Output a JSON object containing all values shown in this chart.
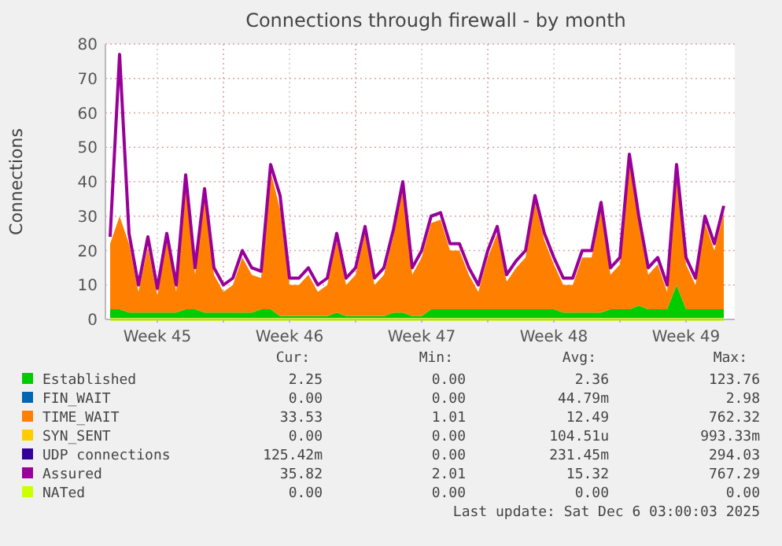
{
  "chart_data": {
    "type": "area",
    "title": "Connections through firewall - by month",
    "ylabel": "Connections",
    "stacked": true,
    "grid": true,
    "legend": "bottom",
    "xlim": [
      "2025-11-03T18:00",
      "2025-12-07T02:00"
    ],
    "xticks": [
      {
        "value": "2025-11-06T12:00",
        "label": "Week 45"
      },
      {
        "value": "2025-11-10",
        "label": null
      },
      {
        "value": "2025-11-13T12:00",
        "label": "Week 46"
      },
      {
        "value": "2025-11-17",
        "label": null
      },
      {
        "value": "2025-11-20T12:00",
        "label": "Week 47"
      },
      {
        "value": "2025-11-24",
        "label": null
      },
      {
        "value": "2025-11-27T12:00",
        "label": "Week 48"
      },
      {
        "value": "2025-12-01",
        "label": null
      },
      {
        "value": "2025-12-04T12:00",
        "label": "Week 49"
      }
    ],
    "ylim": [
      0,
      80
    ],
    "yticks": [
      0,
      10,
      20,
      30,
      40,
      50,
      60,
      70,
      80
    ],
    "x": [
      "2025-11-04T00:00",
      "2025-11-04T12:00",
      "2025-11-05T00:00",
      "2025-11-05T12:00",
      "2025-11-06T00:00",
      "2025-11-06T12:00",
      "2025-11-07T00:00",
      "2025-11-07T12:00",
      "2025-11-08T00:00",
      "2025-11-08T12:00",
      "2025-11-09T00:00",
      "2025-11-09T12:00",
      "2025-11-10T00:00",
      "2025-11-10T12:00",
      "2025-11-11T00:00",
      "2025-11-11T12:00",
      "2025-11-12T00:00",
      "2025-11-12T12:00",
      "2025-11-13T00:00",
      "2025-11-13T12:00",
      "2025-11-14T00:00",
      "2025-11-14T12:00",
      "2025-11-15T00:00",
      "2025-11-15T12:00",
      "2025-11-16T00:00",
      "2025-11-16T12:00",
      "2025-11-17T00:00",
      "2025-11-17T12:00",
      "2025-11-18T00:00",
      "2025-11-18T12:00",
      "2025-11-19T00:00",
      "2025-11-19T12:00",
      "2025-11-20T00:00",
      "2025-11-20T12:00",
      "2025-11-21T00:00",
      "2025-11-21T12:00",
      "2025-11-22T00:00",
      "2025-11-22T12:00",
      "2025-11-23T00:00",
      "2025-11-23T12:00",
      "2025-11-24T00:00",
      "2025-11-24T12:00",
      "2025-11-25T00:00",
      "2025-11-25T12:00",
      "2025-11-26T00:00",
      "2025-11-26T12:00",
      "2025-11-27T00:00",
      "2025-11-27T12:00",
      "2025-11-28T00:00",
      "2025-11-28T12:00",
      "2025-11-29T00:00",
      "2025-11-29T12:00",
      "2025-11-30T00:00",
      "2025-11-30T12:00",
      "2025-12-01T00:00",
      "2025-12-01T12:00",
      "2025-12-02T00:00",
      "2025-12-02T12:00",
      "2025-12-03T00:00",
      "2025-12-03T12:00",
      "2025-12-04T00:00",
      "2025-12-04T12:00",
      "2025-12-05T00:00",
      "2025-12-05T12:00",
      "2025-12-06T00:00",
      "2025-12-06T12:00"
    ],
    "series": [
      {
        "name": "Established",
        "color": "#00cc00",
        "values": [
          3,
          3,
          2,
          2,
          2,
          2,
          2,
          2,
          3,
          3,
          2,
          2,
          2,
          2,
          2,
          2,
          3,
          3,
          1,
          1,
          1,
          1,
          1,
          1,
          2,
          1,
          1,
          1,
          1,
          1,
          2,
          2,
          1,
          1,
          3,
          3,
          3,
          3,
          3,
          3,
          3,
          3,
          3,
          3,
          3,
          3,
          3,
          3,
          2,
          2,
          2,
          2,
          2,
          3,
          3,
          3,
          4,
          3,
          3,
          3,
          10,
          3,
          3,
          3,
          3,
          3
        ]
      },
      {
        "name": "FIN_WAIT",
        "color": "#0066b3",
        "values": [
          null,
          null,
          null,
          null,
          null,
          null,
          null,
          null,
          null,
          null,
          null,
          null,
          null,
          null,
          null,
          null,
          null,
          null,
          null,
          null,
          null,
          null,
          null,
          null,
          null,
          null,
          null,
          null,
          null,
          null,
          null,
          null,
          null,
          null,
          null,
          null,
          null,
          null,
          null,
          null,
          null,
          null,
          null,
          null,
          null,
          null,
          null,
          null,
          null,
          null,
          null,
          null,
          null,
          null,
          null,
          null,
          null,
          null,
          null,
          null,
          null,
          null,
          null,
          null,
          null,
          null
        ]
      },
      {
        "name": "TIME_WAIT",
        "color": "#ff8000",
        "values": [
          19,
          27,
          20,
          6,
          19,
          5,
          21,
          6,
          37,
          10,
          34,
          11,
          6,
          8,
          16,
          11,
          9,
          40,
          31,
          9,
          9,
          12,
          7,
          9,
          21,
          9,
          12,
          24,
          9,
          12,
          22,
          36,
          12,
          17,
          25,
          26,
          17,
          17,
          10,
          5,
          15,
          22,
          8,
          12,
          15,
          31,
          20,
          13,
          8,
          8,
          16,
          16,
          30,
          10,
          13,
          43,
          24,
          10,
          13,
          5,
          33,
          13,
          7,
          25,
          17,
          28
        ]
      },
      {
        "name": "SYN_SENT",
        "color": "#ffcc00",
        "values": [
          null,
          null,
          null,
          null,
          null,
          null,
          null,
          null,
          null,
          null,
          null,
          null,
          null,
          null,
          null,
          null,
          null,
          null,
          null,
          null,
          null,
          null,
          null,
          null,
          null,
          null,
          null,
          null,
          null,
          null,
          null,
          null,
          null,
          null,
          null,
          null,
          null,
          null,
          null,
          null,
          null,
          null,
          null,
          null,
          null,
          null,
          null,
          null,
          null,
          null,
          null,
          null,
          null,
          null,
          null,
          null,
          null,
          null,
          null,
          null,
          null,
          null,
          null,
          null,
          null,
          null
        ]
      },
      {
        "name": "UDP connections",
        "color": "#330099",
        "values": [
          null,
          null,
          null,
          null,
          null,
          null,
          null,
          null,
          null,
          null,
          null,
          null,
          null,
          null,
          null,
          null,
          null,
          null,
          null,
          null,
          null,
          null,
          null,
          null,
          null,
          null,
          null,
          null,
          null,
          null,
          null,
          null,
          null,
          null,
          null,
          null,
          null,
          null,
          null,
          null,
          null,
          null,
          null,
          null,
          null,
          null,
          null,
          null,
          null,
          null,
          null,
          null,
          null,
          null,
          null,
          null,
          null,
          null,
          null,
          null,
          null,
          null,
          null,
          null,
          null,
          null
        ]
      },
      {
        "name": "Assured",
        "type": "line",
        "color": "#990099",
        "values": [
          24,
          77,
          25,
          10,
          24,
          9,
          25,
          10,
          42,
          15,
          38,
          15,
          10,
          12,
          20,
          15,
          14,
          45,
          36,
          12,
          12,
          15,
          10,
          12,
          25,
          12,
          15,
          27,
          12,
          15,
          26,
          40,
          15,
          20,
          30,
          31,
          22,
          22,
          15,
          10,
          20,
          27,
          13,
          17,
          20,
          36,
          25,
          18,
          12,
          12,
          20,
          20,
          34,
          15,
          18,
          48,
          30,
          15,
          18,
          10,
          45,
          18,
          12,
          30,
          22,
          33
        ]
      },
      {
        "name": "NATed",
        "type": "line",
        "color": "#ccff00",
        "values": [
          0,
          0,
          0,
          0,
          0,
          0,
          0,
          0,
          0,
          0,
          0,
          0,
          0,
          0,
          0,
          0,
          0,
          0,
          0,
          0,
          0,
          0,
          0,
          0,
          0,
          0,
          0,
          0,
          0,
          0,
          0,
          0,
          0,
          0,
          0,
          0,
          0,
          0,
          0,
          0,
          0,
          0,
          0,
          0,
          0,
          0,
          0,
          0,
          0,
          0,
          0,
          0,
          0,
          0,
          0,
          0,
          0,
          0,
          0,
          0,
          0,
          0,
          0,
          0,
          0,
          0
        ]
      }
    ],
    "annotations": [
      "Cur:",
      "Min:",
      "Avg:",
      "Max:",
      "2.25",
      "0.00",
      "2.36",
      "123.76",
      "0.00",
      "0.00",
      "44.79m",
      "2.98",
      "33.53",
      "1.01",
      "12.49",
      "762.32",
      "0.00",
      "0.00",
      "104.51u",
      "993.33m",
      "125.42m",
      "0.00",
      "231.45m",
      "294.03",
      "35.82",
      "2.01",
      "15.32",
      "767.29",
      "0.00",
      "0.00",
      "0.00",
      "0.00",
      "Last update: Sat Dec  6 03:00:03 2025"
    ]
  }
}
